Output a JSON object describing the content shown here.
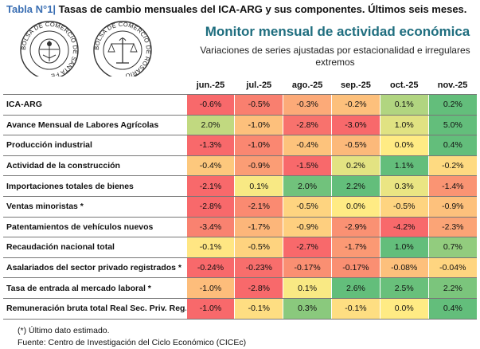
{
  "header": {
    "tag": "Tabla N°1|",
    "title": " Tasas de cambio mensuales del ICA-ARG y sus componentes. Últimos seis meses."
  },
  "logos": {
    "seal1_text": "BOLSA DE COMERCIO DE SANTA FE",
    "seal2_text": "BOLSA DE COMERCIO DE ROSARIO"
  },
  "monitor": {
    "title": "Monitor mensual de actividad económica",
    "subtitle": "Variaciones de series ajustadas por estacionalidad e irregulares extremos"
  },
  "table": {
    "columns": [
      "jun.-25",
      "jul.-25",
      "ago.-25",
      "sep.-25",
      "oct.-25",
      "nov.-25"
    ],
    "rows": [
      {
        "label": "ICA-ARG",
        "values": [
          -0.6,
          -0.5,
          -0.3,
          -0.2,
          0.1,
          0.2
        ],
        "texts": [
          "-0.6%",
          "-0.5%",
          "-0.3%",
          "-0.2%",
          "0.1%",
          "0.2%"
        ]
      },
      {
        "label": "Avance Mensual de Labores Agrícolas",
        "values": [
          2.0,
          -1.0,
          -2.8,
          -3.0,
          1.0,
          5.0
        ],
        "texts": [
          "2.0%",
          "-1.0%",
          "-2.8%",
          "-3.0%",
          "1.0%",
          "5.0%"
        ]
      },
      {
        "label": "Producción industrial",
        "values": [
          -1.3,
          -1.0,
          -0.4,
          -0.5,
          0.0,
          0.4
        ],
        "texts": [
          "-1.3%",
          "-1.0%",
          "-0.4%",
          "-0.5%",
          "0.0%",
          "0.4%"
        ]
      },
      {
        "label": "Actividad de la construcción",
        "values": [
          -0.4,
          -0.9,
          -1.5,
          0.2,
          1.1,
          -0.2
        ],
        "texts": [
          "-0.4%",
          "-0.9%",
          "-1.5%",
          "0.2%",
          "1.1%",
          "-0.2%"
        ]
      },
      {
        "label": "Importaciones totales de bienes",
        "values": [
          -2.1,
          0.1,
          2.0,
          2.2,
          0.3,
          -1.4
        ],
        "texts": [
          "-2.1%",
          "0.1%",
          "2.0%",
          "2.2%",
          "0.3%",
          "-1.4%"
        ]
      },
      {
        "label": "Ventas minoristas *",
        "values": [
          -2.8,
          -2.1,
          -0.5,
          0.0,
          -0.5,
          -0.9
        ],
        "texts": [
          "-2.8%",
          "-2.1%",
          "-0.5%",
          "0.0%",
          "-0.5%",
          "-0.9%"
        ]
      },
      {
        "label": "Patentamientos de vehículos nuevos",
        "values": [
          -3.4,
          -1.7,
          -0.9,
          -2.9,
          -4.2,
          -2.3
        ],
        "texts": [
          "-3.4%",
          "-1.7%",
          "-0.9%",
          "-2.9%",
          "-4.2%",
          "-2.3%"
        ]
      },
      {
        "label": "Recaudación nacional total",
        "values": [
          -0.1,
          -0.5,
          -2.7,
          -1.7,
          1.0,
          0.7
        ],
        "texts": [
          "-0.1%",
          "-0.5%",
          "-2.7%",
          "-1.7%",
          "1.0%",
          "0.7%"
        ]
      },
      {
        "label": "Asalariados del sector privado registrados *",
        "values": [
          -0.24,
          -0.23,
          -0.17,
          -0.17,
          -0.08,
          -0.04
        ],
        "texts": [
          "-0.24%",
          "-0.23%",
          "-0.17%",
          "-0.17%",
          "-0.08%",
          "-0.04%"
        ]
      },
      {
        "label": "Tasa de entrada al mercado laboral *",
        "values": [
          -1.0,
          -2.8,
          0.1,
          2.6,
          2.5,
          2.2
        ],
        "texts": [
          "-1.0%",
          "-2.8%",
          "0.1%",
          "2.6%",
          "2.5%",
          "2.2%"
        ]
      },
      {
        "label": "Remuneración bruta total Real Sec. Priv. Reg.*",
        "values": [
          -1.0,
          -0.1,
          0.3,
          -0.1,
          0.0,
          0.4
        ],
        "texts": [
          "-1.0%",
          "-0.1%",
          "0.3%",
          "-0.1%",
          "0.0%",
          "0.4%"
        ]
      }
    ],
    "colors": {
      "strong_negative": "#F8696B",
      "neutral": "#FFEB84",
      "strong_positive": "#63BE7B"
    }
  },
  "footnotes": {
    "note": "(*) Último dato estimado.",
    "source": "Fuente: Centro de Investigación del Ciclo Económico (CICEc)"
  }
}
